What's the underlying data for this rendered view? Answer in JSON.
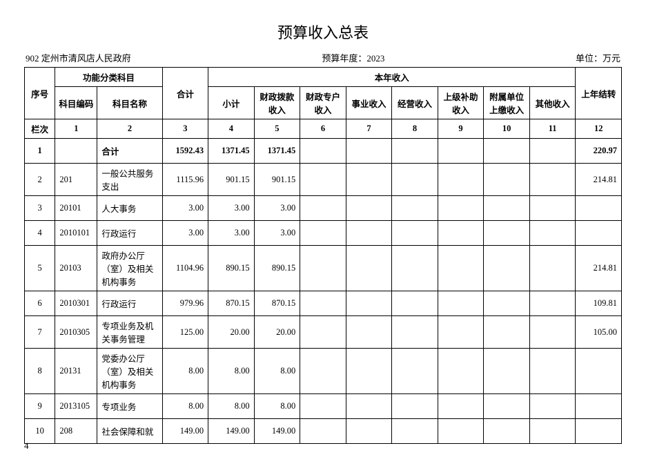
{
  "title": "预算收入总表",
  "meta": {
    "org": "902 定州市清风店人民政府",
    "year_label": "预算年度：2023",
    "unit": "单位：万元"
  },
  "header": {
    "seq": "序号",
    "func_group": "功能分类科目",
    "code": "科目编码",
    "name": "科目名称",
    "total": "合计",
    "current_year": "本年收入",
    "subtotal": "小计",
    "col5": "财政拨款收入",
    "col6": "财政专户收入",
    "col7": "事业收入",
    "col8": "经营收入",
    "col9": "上级补助收入",
    "col10": "附属单位上缴收入",
    "col11": "其他收入",
    "carry": "上年结转",
    "lane": "栏次"
  },
  "lane_numbers": [
    "1",
    "2",
    "3",
    "4",
    "5",
    "6",
    "7",
    "8",
    "9",
    "10",
    "11",
    "12"
  ],
  "rows": [
    {
      "seq": "1",
      "code": "",
      "name": "合计",
      "total": "1592.43",
      "c4": "1371.45",
      "c5": "1371.45",
      "c6": "",
      "c7": "",
      "c8": "",
      "c9": "",
      "c10": "",
      "c11": "",
      "c12": "220.97",
      "bold": true
    },
    {
      "seq": "2",
      "code": "201",
      "name": "一般公共服务支出",
      "total": "1115.96",
      "c4": "901.15",
      "c5": "901.15",
      "c6": "",
      "c7": "",
      "c8": "",
      "c9": "",
      "c10": "",
      "c11": "",
      "c12": "214.81"
    },
    {
      "seq": "3",
      "code": "20101",
      "name": "人大事务",
      "total": "3.00",
      "c4": "3.00",
      "c5": "3.00",
      "c6": "",
      "c7": "",
      "c8": "",
      "c9": "",
      "c10": "",
      "c11": "",
      "c12": ""
    },
    {
      "seq": "4",
      "code": "2010101",
      "name": "行政运行",
      "total": "3.00",
      "c4": "3.00",
      "c5": "3.00",
      "c6": "",
      "c7": "",
      "c8": "",
      "c9": "",
      "c10": "",
      "c11": "",
      "c12": ""
    },
    {
      "seq": "5",
      "code": "20103",
      "name": "政府办公厅（室）及相关机构事务",
      "total": "1104.96",
      "c4": "890.15",
      "c5": "890.15",
      "c6": "",
      "c7": "",
      "c8": "",
      "c9": "",
      "c10": "",
      "c11": "",
      "c12": "214.81"
    },
    {
      "seq": "6",
      "code": "2010301",
      "name": "行政运行",
      "total": "979.96",
      "c4": "870.15",
      "c5": "870.15",
      "c6": "",
      "c7": "",
      "c8": "",
      "c9": "",
      "c10": "",
      "c11": "",
      "c12": "109.81"
    },
    {
      "seq": "7",
      "code": "2010305",
      "name": "专项业务及机关事务管理",
      "total": "125.00",
      "c4": "20.00",
      "c5": "20.00",
      "c6": "",
      "c7": "",
      "c8": "",
      "c9": "",
      "c10": "",
      "c11": "",
      "c12": "105.00"
    },
    {
      "seq": "8",
      "code": "20131",
      "name": "党委办公厅（室）及相关机构事务",
      "total": "8.00",
      "c4": "8.00",
      "c5": "8.00",
      "c6": "",
      "c7": "",
      "c8": "",
      "c9": "",
      "c10": "",
      "c11": "",
      "c12": ""
    },
    {
      "seq": "9",
      "code": "2013105",
      "name": "专项业务",
      "total": "8.00",
      "c4": "8.00",
      "c5": "8.00",
      "c6": "",
      "c7": "",
      "c8": "",
      "c9": "",
      "c10": "",
      "c11": "",
      "c12": ""
    },
    {
      "seq": "10",
      "code": "208",
      "name": "社会保障和就",
      "total": "149.00",
      "c4": "149.00",
      "c5": "149.00",
      "c6": "",
      "c7": "",
      "c8": "",
      "c9": "",
      "c10": "",
      "c11": "",
      "c12": ""
    }
  ],
  "page_number": "4",
  "style": {
    "border_color": "#000000",
    "background": "#ffffff",
    "text_color": "#000000",
    "title_fontsize": 22,
    "cell_fontsize": 12.5
  }
}
